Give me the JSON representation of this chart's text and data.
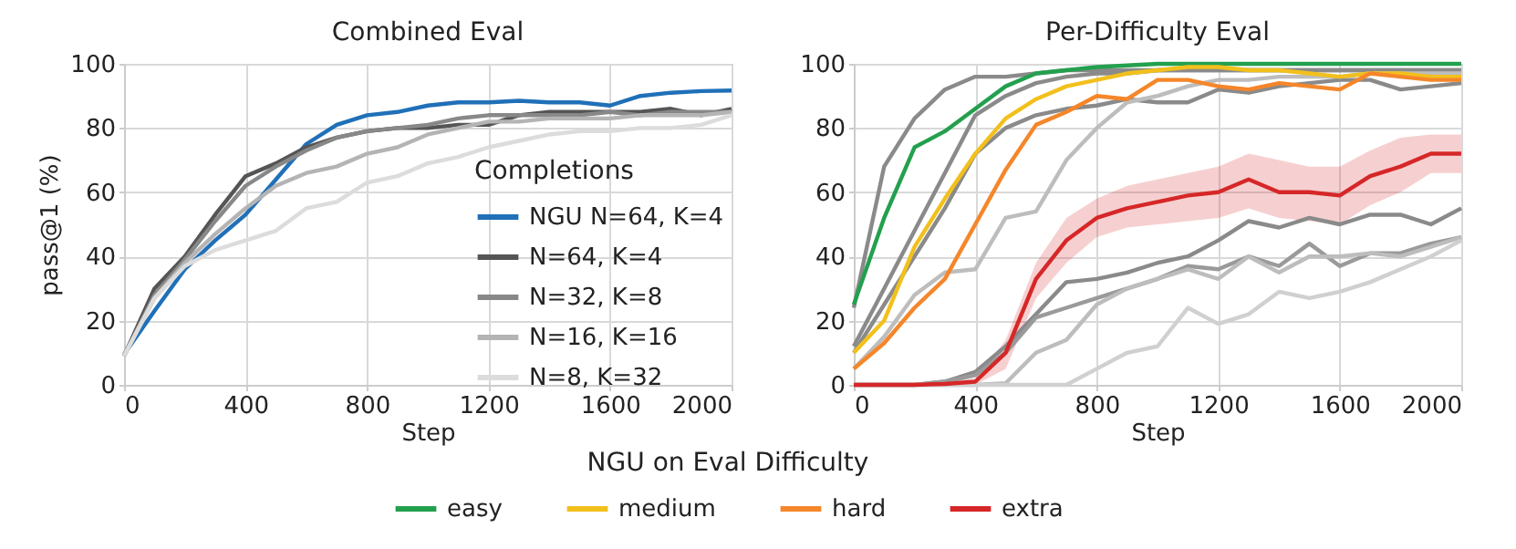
{
  "chart_data": [
    {
      "type": "line",
      "title": "Combined Eval",
      "xlabel": "Step",
      "ylabel": "pass@1 (%)",
      "legend_title": "Completions",
      "legend": "right",
      "grid": true,
      "x": [
        0,
        100,
        200,
        300,
        400,
        500,
        600,
        700,
        800,
        900,
        1000,
        1100,
        1200,
        1300,
        1400,
        1500,
        1600,
        1700,
        1800,
        1900,
        2000
      ],
      "xlim": [
        0,
        2000
      ],
      "xticks": [
        0,
        400,
        800,
        1200,
        1600,
        2000
      ],
      "ylim": [
        0,
        100
      ],
      "yticks": [
        0,
        20,
        40,
        60,
        80,
        100
      ],
      "series": [
        {
          "name": "NGU N=64, K=4",
          "color": "#2070b8",
          "values": [
            9.5,
            23,
            36,
            45,
            53,
            64,
            75,
            81,
            84,
            85,
            87,
            88,
            88,
            88.5,
            88,
            88,
            87,
            90,
            91,
            91.5,
            91.7
          ]
        },
        {
          "name": "N=64, K=4",
          "color": "#555555",
          "values": [
            9,
            30,
            40,
            53,
            65,
            69,
            74,
            77,
            79,
            80,
            80,
            81,
            81,
            84,
            85,
            85,
            85,
            85,
            86,
            84,
            86
          ]
        },
        {
          "name": "N=32, K=8",
          "color": "#888888",
          "values": [
            9,
            28,
            39,
            51,
            62,
            68,
            73,
            77,
            79,
            80,
            81,
            83,
            84,
            84,
            84,
            84,
            85,
            84,
            85,
            85,
            85
          ]
        },
        {
          "name": "N=16, K=16",
          "color": "#b4b4b4",
          "values": [
            9,
            27,
            38,
            47,
            55,
            62,
            66,
            68,
            72,
            74,
            78,
            80,
            82,
            82,
            83,
            83,
            83,
            84,
            84,
            84,
            85
          ]
        },
        {
          "name": "N=8,   K=32",
          "color": "#dcdcdc",
          "values": [
            9,
            27,
            37,
            42,
            45,
            48,
            55,
            57,
            63,
            65,
            69,
            71,
            74,
            76,
            78,
            79,
            79,
            80,
            80,
            81,
            84
          ]
        }
      ]
    },
    {
      "type": "line",
      "title": "Per-Difficulty Eval",
      "xlabel": "Step",
      "legend_title": "NGU on Eval Difficulty",
      "legend": "bottom",
      "grid": true,
      "x": [
        0,
        100,
        200,
        300,
        400,
        500,
        600,
        700,
        800,
        900,
        1000,
        1100,
        1200,
        1300,
        1400,
        1500,
        1600,
        1700,
        1800,
        1900,
        2000
      ],
      "xlim": [
        0,
        2000
      ],
      "xticks": [
        0,
        400,
        800,
        1200,
        1600,
        2000
      ],
      "ylim": [
        0,
        100
      ],
      "yticks": [
        0,
        20,
        40,
        60,
        80,
        100
      ],
      "series": [
        {
          "color": "#8a8a8a",
          "values": [
            24,
            68,
            83,
            92,
            96,
            96,
            97,
            98,
            98,
            98,
            98,
            98,
            98,
            98,
            98,
            98,
            98,
            98,
            98,
            98,
            98
          ]
        },
        {
          "color": "#8a8a8a",
          "values": [
            12,
            30,
            48,
            66,
            84,
            90,
            94,
            96,
            97,
            97,
            98,
            98,
            98,
            98,
            98,
            98,
            98,
            98,
            98,
            98,
            98
          ]
        },
        {
          "color": "#8a8a8a",
          "values": [
            10,
            25,
            40,
            55,
            72,
            80,
            84,
            86,
            87,
            89,
            88,
            88,
            92,
            91,
            93,
            94,
            95,
            95,
            92,
            93,
            94
          ]
        },
        {
          "color": "#bdbdbd",
          "values": [
            5,
            15,
            28,
            35,
            36,
            52,
            54,
            70,
            80,
            88,
            90,
            93,
            95,
            95,
            96,
            96,
            96,
            97,
            97,
            97,
            97
          ]
        },
        {
          "color": "#8a8a8a",
          "values": [
            0,
            0,
            0,
            1,
            4,
            12,
            22,
            32,
            33,
            35,
            38,
            40,
            45,
            51,
            49,
            52,
            50,
            53,
            53,
            50,
            55
          ]
        },
        {
          "color": "#9a9a9a",
          "values": [
            0,
            0,
            0,
            1,
            3,
            10,
            21,
            24,
            27,
            30,
            33,
            37,
            36,
            40,
            37,
            44,
            37,
            41,
            41,
            44,
            46
          ]
        },
        {
          "color": "#bdbdbd",
          "values": [
            0,
            0,
            0,
            0,
            0,
            0.5,
            10,
            14,
            25,
            30,
            33,
            36,
            33,
            40,
            35,
            40,
            40,
            41,
            40,
            43,
            46
          ]
        },
        {
          "color": "#d0d0d0",
          "values": [
            0,
            0,
            0,
            0,
            0,
            0,
            0,
            0,
            5,
            10,
            12,
            24,
            19,
            22,
            29,
            27,
            29,
            32,
            36,
            40,
            45
          ]
        },
        {
          "name": "easy",
          "color": "#23a04e",
          "values": [
            25,
            52,
            74,
            79,
            86,
            93,
            97,
            98,
            99,
            99.5,
            100,
            100,
            100,
            100,
            100,
            100,
            100,
            100,
            100,
            100,
            100
          ]
        },
        {
          "name": "medium",
          "color": "#f2c01c",
          "values": [
            10,
            20,
            43,
            58,
            72,
            83,
            89,
            93,
            95,
            97,
            98,
            99,
            99,
            98,
            98,
            97,
            96,
            97,
            97,
            96,
            96
          ]
        },
        {
          "name": "hard",
          "color": "#f5862a",
          "values": [
            5,
            13,
            24,
            33,
            50,
            67,
            81,
            85,
            90,
            89,
            95,
            95,
            93,
            92,
            94,
            93,
            92,
            97,
            96,
            95,
            95
          ]
        },
        {
          "name": "extra",
          "color": "#d62728",
          "values": [
            0,
            0,
            0,
            0.3,
            1,
            10,
            33,
            45,
            52,
            55,
            57,
            59,
            60,
            64,
            60,
            60,
            59,
            65,
            68,
            72,
            72
          ],
          "lower": [
            0,
            0,
            0,
            0,
            0,
            5,
            27,
            38,
            46,
            49,
            50,
            51,
            52,
            55,
            52,
            51,
            50,
            56,
            60,
            66,
            66
          ],
          "upper": [
            0,
            0,
            0,
            1,
            2,
            14,
            38,
            52,
            58,
            62,
            64,
            66,
            68,
            72,
            70,
            68,
            68,
            73,
            77,
            78,
            78
          ]
        }
      ]
    }
  ]
}
